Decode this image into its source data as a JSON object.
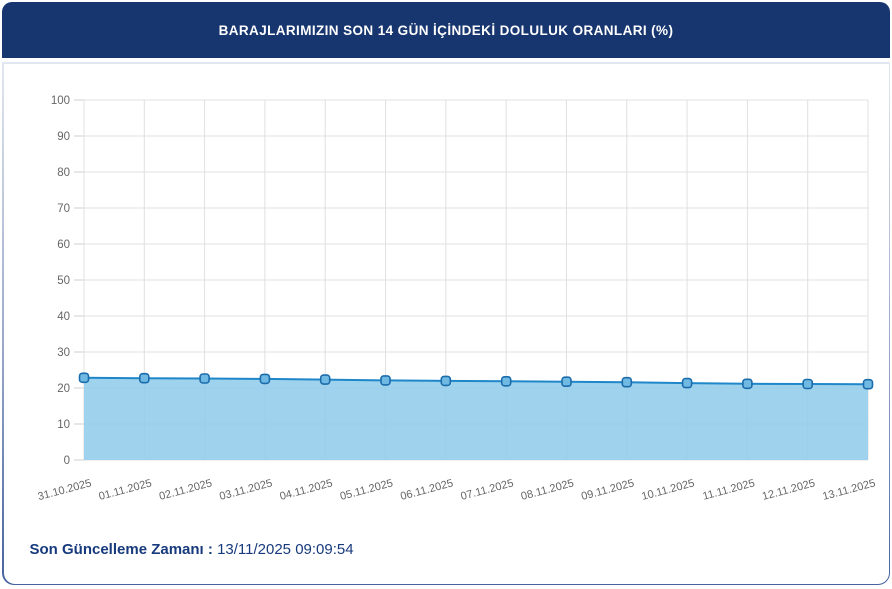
{
  "header": {
    "title": "BARAJLARIMIZIN SON 14 GÜN İÇİNDEKİ DOLULUK ORANLARI (%)"
  },
  "chart_data": {
    "type": "area",
    "title": "BARAJLARIMIZIN SON 14 GÜN İÇİNDEKİ DOLULUK ORANLARI (%)",
    "categories": [
      "31.10.2025",
      "01.11.2025",
      "02.11.2025",
      "03.11.2025",
      "04.11.2025",
      "05.11.2025",
      "06.11.2025",
      "07.11.2025",
      "08.11.2025",
      "09.11.2025",
      "10.11.2025",
      "11.11.2025",
      "12.11.2025",
      "13.11.2025"
    ],
    "series": [
      {
        "values": [
          22.83,
          22.72,
          22.64,
          22.52,
          22.32,
          22.12,
          21.98,
          21.86,
          21.74,
          21.6,
          21.35,
          21.18,
          21.12,
          21.05
        ]
      }
    ],
    "ylim": [
      0,
      100
    ],
    "yticks": [
      0,
      10,
      20,
      30,
      40,
      50,
      60,
      70,
      80,
      90,
      100
    ],
    "grid": true,
    "legend": "none",
    "xlabel": "",
    "ylabel": "",
    "x_label_rotation": -15,
    "colors": {
      "line": "#1f87c9",
      "area_fill": "#8ecbea",
      "marker_fill": "#6fb9e3",
      "marker_stroke": "#1b6cab",
      "grid": "#e0e0e0",
      "axis_tick": "#cfcfcf",
      "tick_label": "#666666"
    }
  },
  "footer": {
    "label": "Son Güncelleme Zamanı",
    "separator": " : ",
    "value": "13/11/2025 09:09:54"
  },
  "theme": {
    "header_bg": "#17356e",
    "header_text": "#ffffff",
    "footer_text": "#173a7d"
  }
}
